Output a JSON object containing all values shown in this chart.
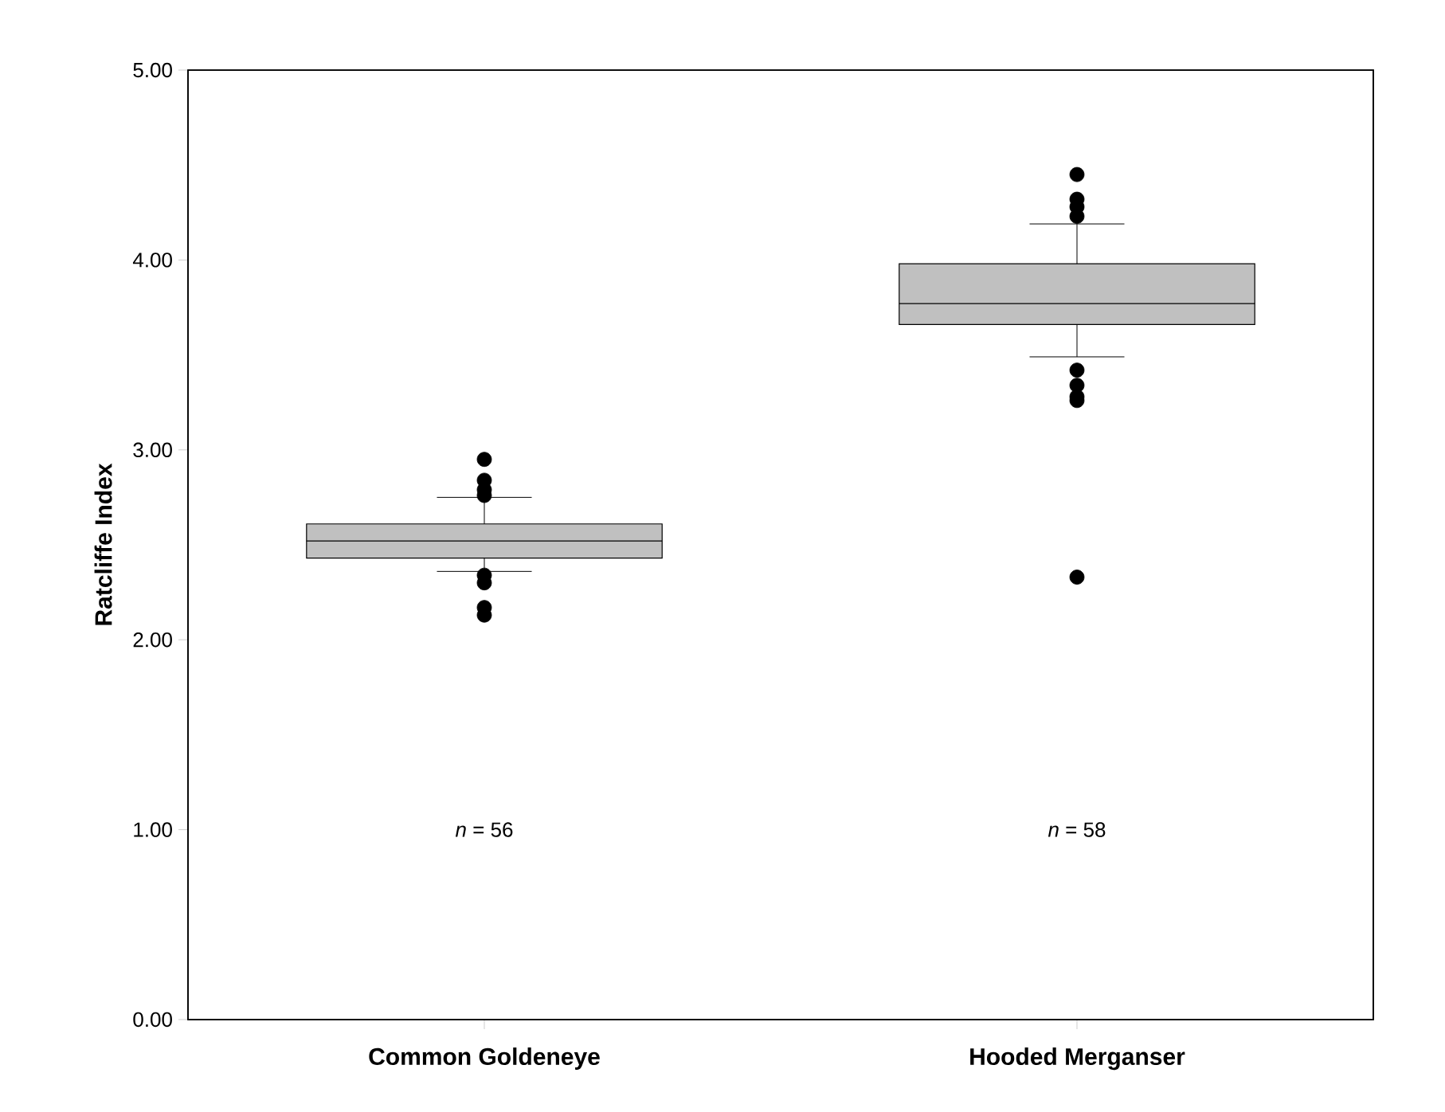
{
  "chart_data": {
    "type": "box",
    "categories": [
      "Common Goldeneye",
      "Hooded Merganser"
    ],
    "ylabel": "Ratcliffe Index",
    "ylim": [
      0,
      5
    ],
    "yticks": [
      {
        "value": 0,
        "label": "0.00"
      },
      {
        "value": 1,
        "label": "1.00"
      },
      {
        "value": 2,
        "label": "2.00"
      },
      {
        "value": 3,
        "label": "3.00"
      },
      {
        "value": 4,
        "label": "4.00"
      },
      {
        "value": 5,
        "label": "5.00"
      }
    ],
    "color": "#c0c0c0",
    "boxes": [
      {
        "low": 2.36,
        "q1": 2.43,
        "median": 2.52,
        "q3": 2.61,
        "high": 2.75,
        "outliers": [
          2.95,
          2.84,
          2.79,
          2.76,
          2.34,
          2.3,
          2.17,
          2.13
        ]
      },
      {
        "low": 3.49,
        "q1": 3.66,
        "median": 3.77,
        "q3": 3.98,
        "high": 4.19,
        "outliers": [
          4.45,
          4.32,
          4.28,
          4.23,
          3.42,
          3.34,
          3.28,
          3.26,
          2.33
        ]
      }
    ],
    "annotations": [
      "*n* = 56",
      "*n* = 58"
    ]
  }
}
